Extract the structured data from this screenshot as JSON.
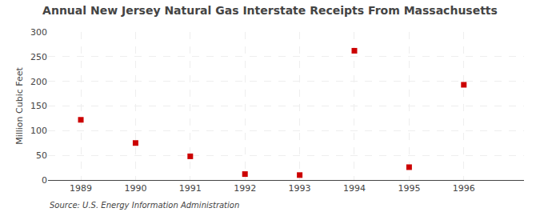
{
  "chart_data": {
    "type": "scatter",
    "title": "Annual New Jersey Natural Gas Interstate Receipts From Massachusetts",
    "ylabel": "Million Cubic Feet",
    "annotations": [
      "Source: U.S. Energy Information Administration"
    ],
    "x": [
      1989,
      1990,
      1991,
      1992,
      1993,
      1994,
      1995,
      1996
    ],
    "values": [
      122,
      75,
      48,
      12,
      10,
      262,
      26,
      193
    ],
    "color": "#cc0000",
    "marker": "square",
    "xlim": [
      1988.4,
      1997.1
    ],
    "xticks": [
      1989,
      1990,
      1991,
      1992,
      1993,
      1994,
      1995,
      1996
    ],
    "ylim": [
      0,
      300
    ],
    "yticks": [
      0,
      50,
      100,
      150,
      200,
      250,
      300
    ],
    "grid": true
  }
}
